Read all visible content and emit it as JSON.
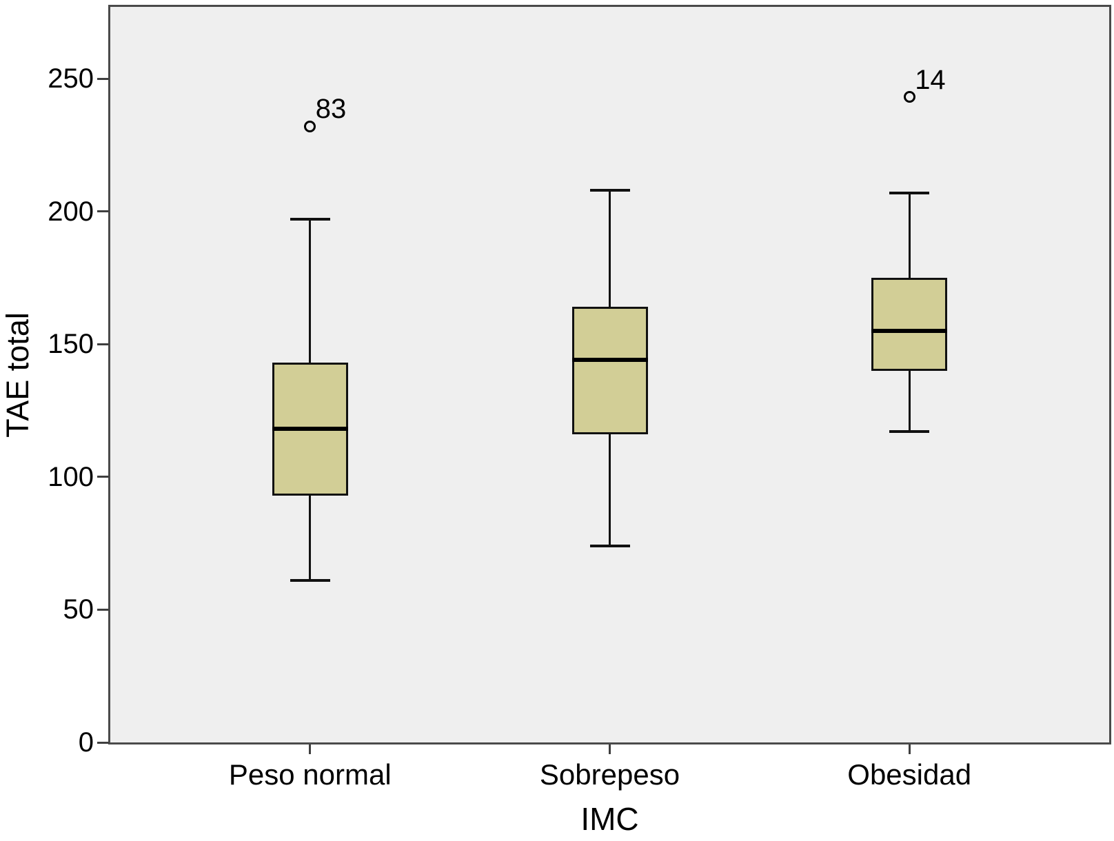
{
  "chart_data": {
    "type": "box",
    "title": "",
    "xlabel": "IMC",
    "ylabel": "TAE total",
    "categories": [
      "Peso normal",
      "Sobrepeso",
      "Obesidad"
    ],
    "yticks": [
      0,
      50,
      100,
      150,
      200,
      250
    ],
    "ylim": [
      0,
      277
    ],
    "grid": false,
    "legend_position": "none",
    "series": [
      {
        "category": "Peso normal",
        "whisker_low": 61,
        "q1": 93,
        "median": 118,
        "q3": 143,
        "whisker_high": 197,
        "outliers": [
          {
            "value": 232,
            "label": "83"
          }
        ]
      },
      {
        "category": "Sobrepeso",
        "whisker_low": 74,
        "q1": 116,
        "median": 144,
        "q3": 164,
        "whisker_high": 208,
        "outliers": []
      },
      {
        "category": "Obesidad",
        "whisker_low": 117,
        "q1": 140,
        "median": 155,
        "q3": 175,
        "whisker_high": 207,
        "outliers": [
          {
            "value": 243,
            "label": "14"
          }
        ]
      }
    ],
    "colors": {
      "box_fill": "#d2ce96",
      "box_border": "#111111",
      "median": "#000000",
      "plot_bg": "#efefef",
      "plot_border": "#4a4a4a",
      "text": "#000000"
    }
  }
}
